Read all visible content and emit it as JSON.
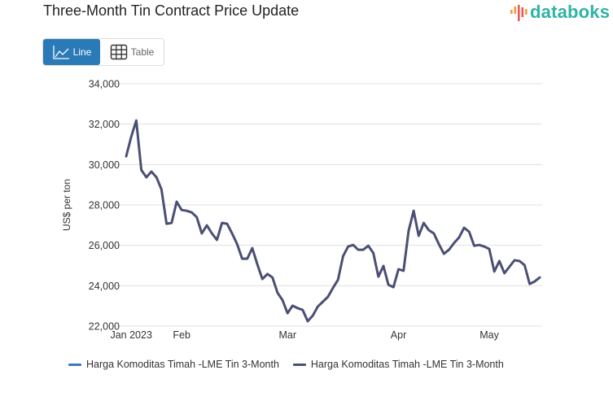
{
  "header": {
    "title": "Three-Month Tin Contract Price Update",
    "logo_text": "databoks",
    "logo_icon": "bar-signal-icon"
  },
  "view_toggle": {
    "line_label": "Line",
    "line_icon": "line-chart-icon",
    "table_label": "Table",
    "table_icon": "table-grid-icon",
    "active": "Line"
  },
  "colors": {
    "accent": "#2a7ab8",
    "logo_teal": "#2fb3a6",
    "logo_orange": "#f29a3a",
    "logo_red": "#e65a5a",
    "series_line": "#4b4f74",
    "legend_series1": "#4472c4",
    "legend_series2": "#4b4f74",
    "gridline": "#e0e0e0"
  },
  "chart_data": {
    "type": "line",
    "title": "Three-Month Tin Contract Price Update",
    "xlabel": "",
    "ylabel": "US$ per ton",
    "ylim": [
      22000,
      34000
    ],
    "yticks": [
      22000,
      24000,
      26000,
      28000,
      30000,
      32000,
      34000
    ],
    "ytick_labels": [
      "22,000",
      "24,000",
      "26,000",
      "28,000",
      "30,000",
      "32,000",
      "34,000"
    ],
    "xticks": [
      {
        "label": "Jan 2023",
        "index": 1
      },
      {
        "label": "Feb",
        "index": 11
      },
      {
        "label": "Mar",
        "index": 32
      },
      {
        "label": "Apr",
        "index": 54
      },
      {
        "label": "May",
        "index": 72
      }
    ],
    "grid": true,
    "legend": {
      "position": "bottom-left",
      "entries": [
        "Harga Komoditas Timah -LME Tin 3-Month",
        "Harga Komoditas Timah -LME Tin 3-Month"
      ]
    },
    "series": [
      {
        "name": "Harga Komoditas Timah -LME Tin 3-Month",
        "values": [
          30410,
          31380,
          32180,
          29730,
          29370,
          29650,
          29370,
          28760,
          27070,
          27110,
          28160,
          27750,
          27710,
          27630,
          27390,
          26590,
          26990,
          26590,
          26270,
          27110,
          27070,
          26590,
          26060,
          25340,
          25340,
          25860,
          25060,
          24330,
          24580,
          24410,
          23650,
          23290,
          22640,
          23010,
          22890,
          22800,
          22240,
          22520,
          22970,
          23210,
          23450,
          23890,
          24290,
          25460,
          25940,
          26020,
          25780,
          25780,
          25980,
          25620,
          24450,
          24980,
          24050,
          23930,
          24820,
          24740,
          26710,
          27710,
          26470,
          27110,
          26750,
          26590,
          26060,
          25580,
          25780,
          26110,
          26390,
          26870,
          26670,
          25980,
          26020,
          25940,
          25820,
          24700,
          25220,
          24620,
          24940,
          25260,
          25220,
          25020,
          24090,
          24210,
          24410
        ]
      }
    ]
  }
}
